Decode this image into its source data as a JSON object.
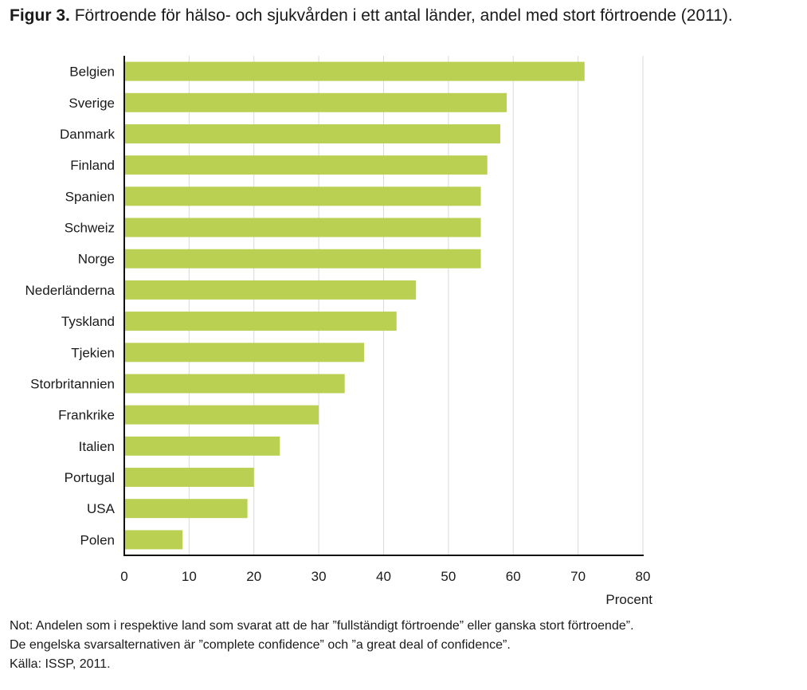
{
  "figure": {
    "label": "Figur 3.",
    "title": "Förtroende för hälso- och sjukvården i ett antal länder, andel med stort förtroende (2011)."
  },
  "chart_data": {
    "type": "bar",
    "orientation": "horizontal",
    "categories": [
      "Belgien",
      "Sverige",
      "Danmark",
      "Finland",
      "Spanien",
      "Schweiz",
      "Norge",
      "Nederländerna",
      "Tyskland",
      "Tjekien",
      "Storbritannien",
      "Frankrike",
      "Italien",
      "Portugal",
      "USA",
      "Polen"
    ],
    "values": [
      71,
      59,
      58,
      56,
      55,
      55,
      55,
      45,
      42,
      37,
      34,
      30,
      24,
      20,
      19,
      9
    ],
    "xlabel": "Procent",
    "xlim": [
      0,
      80
    ],
    "xticks": [
      "0",
      "10",
      "20",
      "30",
      "40",
      "50",
      "60",
      "70",
      "80"
    ],
    "grid": "vertical",
    "bar_color": "#bad053"
  },
  "notes": {
    "line1": "Not: Andelen som i respektive land som svarat att de har ”fullständigt förtroende” eller ganska stort förtroende”.",
    "line2": "De engelska svarsalternativen är ”complete confidence” och ”a great deal of confidence”.",
    "source": "Källa: ISSP, 2011."
  }
}
